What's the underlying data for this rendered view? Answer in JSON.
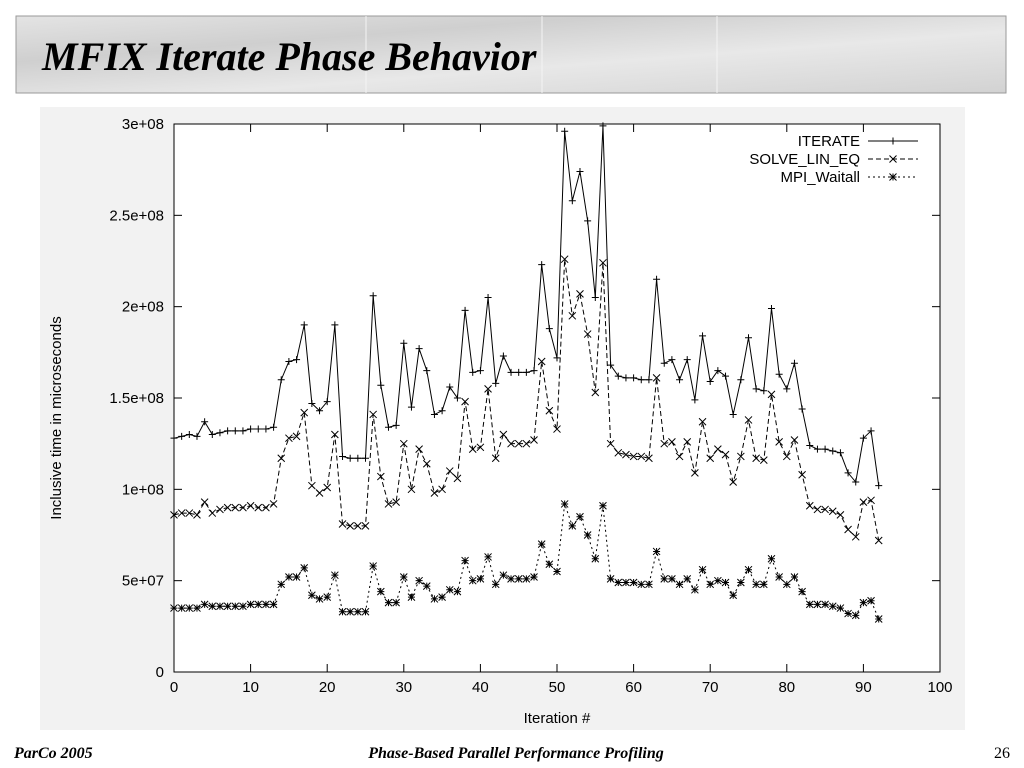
{
  "header": {
    "title": "MFIX Iterate Phase Behavior"
  },
  "footer": {
    "left": "ParCo 2005",
    "center": "Phase-Based Parallel Performance Profiling",
    "page": 26
  },
  "chart_data": {
    "type": "line",
    "xlabel": "Iteration #",
    "ylabel": "Inclusive time in microseconds",
    "x": [
      0,
      1,
      2,
      3,
      4,
      5,
      6,
      7,
      8,
      9,
      10,
      11,
      12,
      13,
      14,
      15,
      16,
      17,
      18,
      19,
      20,
      21,
      22,
      23,
      24,
      25,
      26,
      27,
      28,
      29,
      30,
      31,
      32,
      33,
      34,
      35,
      36,
      37,
      38,
      39,
      40,
      41,
      42,
      43,
      44,
      45,
      46,
      47,
      48,
      49,
      50,
      51,
      52,
      53,
      54,
      55,
      56,
      57,
      58,
      59,
      60,
      61,
      62,
      63,
      64,
      65,
      66,
      67,
      68,
      69,
      70,
      71,
      72,
      73,
      74,
      75,
      76,
      77,
      78,
      79,
      80,
      81,
      82,
      83,
      84,
      85,
      86,
      87,
      88,
      89,
      90,
      91,
      92
    ],
    "xlim": [
      0,
      100
    ],
    "xticks": [
      0,
      10,
      20,
      30,
      40,
      50,
      60,
      70,
      80,
      90,
      100
    ],
    "ylim": [
      0,
      300000000
    ],
    "yticks": [
      {
        "value": 0,
        "label": "0"
      },
      {
        "value": 50000000,
        "label": "5e+07"
      },
      {
        "value": 100000000,
        "label": "1e+08"
      },
      {
        "value": 150000000,
        "label": "1.5e+08"
      },
      {
        "value": 200000000,
        "label": "2e+08"
      },
      {
        "value": 250000000,
        "label": "2.5e+08"
      },
      {
        "value": 300000000,
        "label": "3e+08"
      }
    ],
    "legend_position": "top-right",
    "series": [
      {
        "name": "ITERATE",
        "color": "#000000",
        "line_style": "solid",
        "marker": "+",
        "values": [
          128000000.0,
          129000000.0,
          130000000.0,
          129000000.0,
          137000000.0,
          130000000.0,
          131000000.0,
          132000000.0,
          132000000.0,
          132000000.0,
          133000000.0,
          133000000.0,
          133000000.0,
          134000000.0,
          160000000.0,
          170000000.0,
          171000000.0,
          190000000.0,
          147000000.0,
          143000000.0,
          148000000.0,
          190000000.0,
          118000000.0,
          117000000.0,
          117000000.0,
          117000000.0,
          206000000.0,
          157000000.0,
          134000000.0,
          135000000.0,
          180000000.0,
          145000000.0,
          177000000.0,
          165000000.0,
          141000000.0,
          143000000.0,
          156000000.0,
          150000000.0,
          198000000.0,
          164000000.0,
          165000000.0,
          205000000.0,
          158000000.0,
          173000000.0,
          164000000.0,
          164000000.0,
          164000000.0,
          165000000.0,
          223000000.0,
          188000000.0,
          172000000.0,
          296000000.0,
          258000000.0,
          274000000.0,
          247000000.0,
          205000000.0,
          299000000.0,
          168000000.0,
          162000000.0,
          161000000.0,
          161000000.0,
          160000000.0,
          160000000.0,
          215000000.0,
          169000000.0,
          171000000.0,
          160000000.0,
          171000000.0,
          149000000.0,
          184000000.0,
          159000000.0,
          165000000.0,
          162000000.0,
          141000000.0,
          160000000.0,
          183000000.0,
          155000000.0,
          154000000.0,
          199000000.0,
          163000000.0,
          155000000.0,
          169000000.0,
          144000000.0,
          124000000.0,
          122000000.0,
          122000000.0,
          121000000.0,
          120000000.0,
          109000000.0,
          104000000.0,
          128000000.0,
          132000000.0,
          102000000.0
        ]
      },
      {
        "name": "SOLVE_LIN_EQ",
        "color": "#000000",
        "line_style": "dashed",
        "marker": "x",
        "values": [
          86000000.0,
          87000000.0,
          87000000.0,
          86000000.0,
          93000000.0,
          87000000.0,
          89000000.0,
          90000000.0,
          90000000.0,
          90000000.0,
          91000000.0,
          90000000.0,
          90000000.0,
          92000000.0,
          117000000.0,
          128000000.0,
          129000000.0,
          142000000.0,
          102000000.0,
          98000000.0,
          101000000.0,
          130000000.0,
          81000000.0,
          80000000.0,
          80000000.0,
          80000000.0,
          141000000.0,
          107000000.0,
          92000000.0,
          93000000.0,
          125000000.0,
          100000000.0,
          122000000.0,
          114000000.0,
          98000000.0,
          100000000.0,
          110000000.0,
          106000000.0,
          148000000.0,
          122000000.0,
          123000000.0,
          155000000.0,
          117000000.0,
          130000000.0,
          125000000.0,
          125000000.0,
          125000000.0,
          127000000.0,
          170000000.0,
          143000000.0,
          133000000.0,
          226000000.0,
          195000000.0,
          207000000.0,
          185000000.0,
          153000000.0,
          224000000.0,
          125000000.0,
          120000000.0,
          119000000.0,
          118000000.0,
          118000000.0,
          117000000.0,
          161000000.0,
          125000000.0,
          126000000.0,
          118000000.0,
          126000000.0,
          109000000.0,
          137000000.0,
          117000000.0,
          122000000.0,
          119000000.0,
          104000000.0,
          118000000.0,
          138000000.0,
          117000000.0,
          116000000.0,
          152000000.0,
          126000000.0,
          118000000.0,
          127000000.0,
          108000000.0,
          91000000.0,
          89000000.0,
          89000000.0,
          88000000.0,
          86000000.0,
          78000000.0,
          74000000.0,
          93000000.0,
          94000000.0,
          72000000.0
        ]
      },
      {
        "name": "MPI_Waitall",
        "color": "#000000",
        "line_style": "dotted",
        "marker": "*",
        "values": [
          35000000.0,
          35000000.0,
          35000000.0,
          35000000.0,
          37000000.0,
          36000000.0,
          36000000.0,
          36000000.0,
          36000000.0,
          36000000.0,
          37000000.0,
          37000000.0,
          37000000.0,
          37000000.0,
          48000000.0,
          52000000.0,
          52000000.0,
          57000000.0,
          42000000.0,
          40000000.0,
          41000000.0,
          53000000.0,
          33000000.0,
          33000000.0,
          33000000.0,
          33000000.0,
          58000000.0,
          44000000.0,
          38000000.0,
          38000000.0,
          52000000.0,
          41000000.0,
          50000000.0,
          47000000.0,
          40000000.0,
          41000000.0,
          45000000.0,
          44000000.0,
          61000000.0,
          50000000.0,
          51000000.0,
          63000000.0,
          48000000.0,
          53000000.0,
          51000000.0,
          51000000.0,
          51000000.0,
          52000000.0,
          70000000.0,
          59000000.0,
          55000000.0,
          92000000.0,
          80000000.0,
          85000000.0,
          75000000.0,
          62000000.0,
          91000000.0,
          51000000.0,
          49000000.0,
          49000000.0,
          49000000.0,
          48000000.0,
          48000000.0,
          66000000.0,
          51000000.0,
          51000000.0,
          48000000.0,
          51000000.0,
          45000000.0,
          56000000.0,
          48000000.0,
          50000000.0,
          49000000.0,
          42000000.0,
          49000000.0,
          56000000.0,
          48000000.0,
          48000000.0,
          62000000.0,
          52000000.0,
          48000000.0,
          52000000.0,
          44000000.0,
          37000000.0,
          37000000.0,
          37000000.0,
          36000000.0,
          35000000.0,
          32000000.0,
          31000000.0,
          38000000.0,
          39000000.0,
          29000000.0
        ]
      }
    ]
  }
}
